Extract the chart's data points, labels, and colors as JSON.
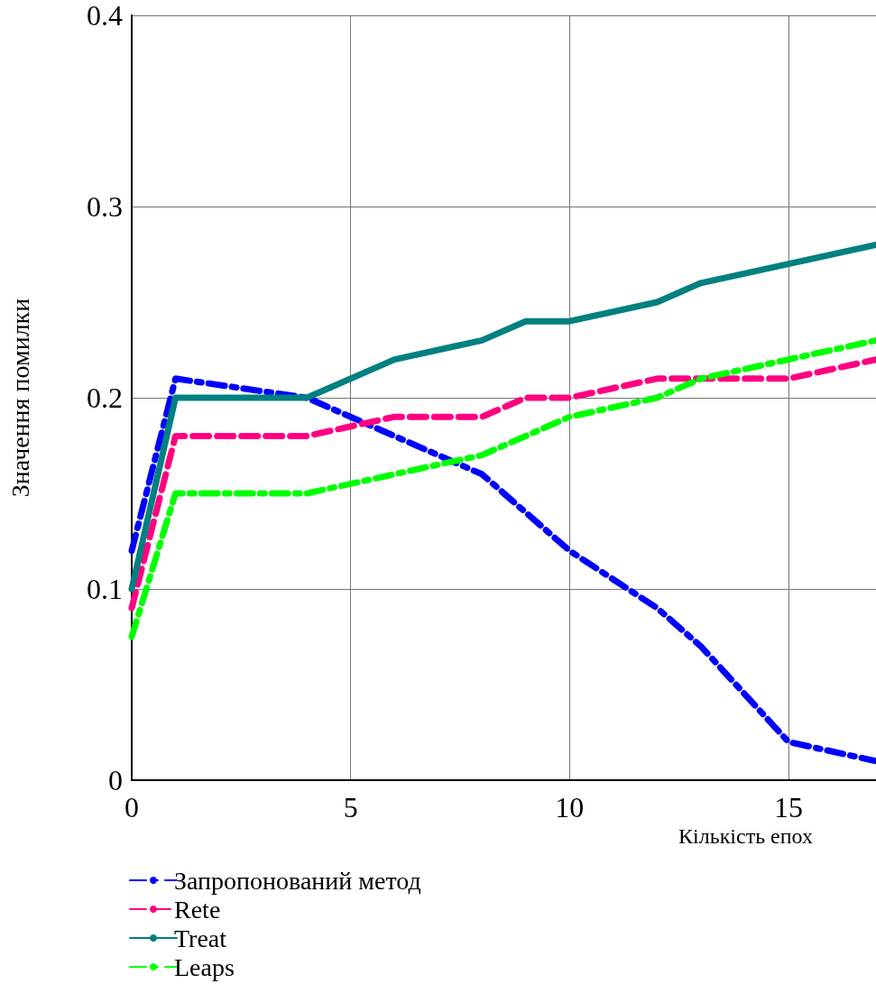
{
  "chart_data": {
    "type": "line",
    "xlabel": "Кількість епох",
    "ylabel": "Значення помилки",
    "xlim": [
      0,
      17
    ],
    "xticks": [
      0,
      5,
      10,
      15
    ],
    "ylim": [
      0,
      0.4
    ],
    "yticks": [
      0,
      0.1,
      0.2,
      0.3,
      0.4
    ],
    "grid": true,
    "legend": "bottom left",
    "marker": "none",
    "series": [
      {
        "name": "Запропонований метод",
        "color": "#0000ff",
        "line_style": "dashdot",
        "x": [
          0,
          1,
          4,
          5,
          6,
          8,
          10,
          12,
          13,
          15,
          17
        ],
        "values": [
          0.12,
          0.21,
          0.2,
          0.19,
          0.18,
          0.16,
          0.12,
          0.09,
          0.07,
          0.02,
          0.01
        ]
      },
      {
        "name": "Rete",
        "color": "#ff0080",
        "line_style": "dashed",
        "x": [
          0,
          1,
          4,
          6,
          8,
          9,
          10,
          12,
          15,
          17
        ],
        "values": [
          0.09,
          0.18,
          0.18,
          0.19,
          0.19,
          0.2,
          0.2,
          0.21,
          0.21,
          0.22
        ]
      },
      {
        "name": "Treat",
        "color": "#008080",
        "line_style": "solid",
        "x": [
          0,
          1,
          4,
          6,
          8,
          9,
          10,
          12,
          13,
          17
        ],
        "values": [
          0.1,
          0.2,
          0.2,
          0.22,
          0.23,
          0.24,
          0.24,
          0.25,
          0.26,
          0.28
        ]
      },
      {
        "name": "Leaps",
        "color": "#00ff00",
        "line_style": "dashdot",
        "x": [
          0,
          1,
          4,
          6,
          8,
          10,
          12,
          13,
          17
        ],
        "values": [
          0.075,
          0.15,
          0.15,
          0.16,
          0.17,
          0.19,
          0.2,
          0.21,
          0.23
        ]
      }
    ]
  }
}
